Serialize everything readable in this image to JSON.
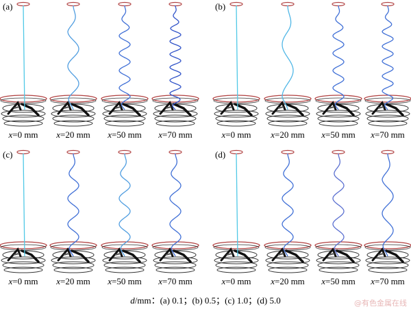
{
  "panels": [
    {
      "label": "(a)",
      "simulations": [
        {
          "label_var": "x",
          "label_rest": "=0 mm",
          "waves": 0,
          "wire_color": "#4fc8e6"
        },
        {
          "label_var": "x",
          "label_rest": "=20 mm",
          "waves": 3,
          "wire_color": "#4f9de0"
        },
        {
          "label_var": "x",
          "label_rest": "=50 mm",
          "waves": 6,
          "wire_color": "#3f6fd6"
        },
        {
          "label_var": "x",
          "label_rest": "=70 mm",
          "waves": 8,
          "wire_color": "#2f52c8"
        }
      ]
    },
    {
      "label": "(b)",
      "simulations": [
        {
          "label_var": "x",
          "label_rest": "=0 mm",
          "waves": 0,
          "wire_color": "#4fc8e6"
        },
        {
          "label_var": "x",
          "label_rest": "=20 mm",
          "waves": 2,
          "wire_color": "#4fb6e6"
        },
        {
          "label_var": "x",
          "label_rest": "=50 mm",
          "waves": 6,
          "wire_color": "#3f6fd6"
        },
        {
          "label_var": "x",
          "label_rest": "=70 mm",
          "waves": 7,
          "wire_color": "#3f6fd6"
        }
      ]
    },
    {
      "label": "(c)",
      "simulations": [
        {
          "label_var": "x",
          "label_rest": "=0 mm",
          "waves": 0,
          "wire_color": "#4fc8e6"
        },
        {
          "label_var": "x",
          "label_rest": "=20 mm",
          "waves": 4,
          "wire_color": "#3f6fd6"
        },
        {
          "label_var": "x",
          "label_rest": "=50 mm",
          "waves": 4,
          "wire_color": "#4f9de0"
        },
        {
          "label_var": "x",
          "label_rest": "=70 mm",
          "waves": 4,
          "wire_color": "#3f6fd6"
        }
      ]
    },
    {
      "label": "(d)",
      "simulations": [
        {
          "label_var": "x",
          "label_rest": "=0 mm",
          "waves": 0,
          "wire_color": "#4fc8e6"
        },
        {
          "label_var": "x",
          "label_rest": "=20 mm",
          "waves": 4,
          "wire_color": "#3f6fd6"
        },
        {
          "label_var": "x",
          "label_rest": "=50 mm",
          "waves": 4,
          "wire_color": "#5a6fd0"
        },
        {
          "label_var": "x",
          "label_rest": "=70 mm",
          "waves": 3,
          "wire_color": "#3f6fd6"
        }
      ]
    }
  ],
  "caption": {
    "variable": "d",
    "text": "/mm：(a) 0.1；(b) 0.5；(c) 1.0；(d) 5.0"
  },
  "watermark": "@有色金属在线",
  "colors": {
    "top_ring": "#b04040",
    "mid_ring": "#b04040",
    "rings": "#333333",
    "mechanism": "#111111"
  }
}
